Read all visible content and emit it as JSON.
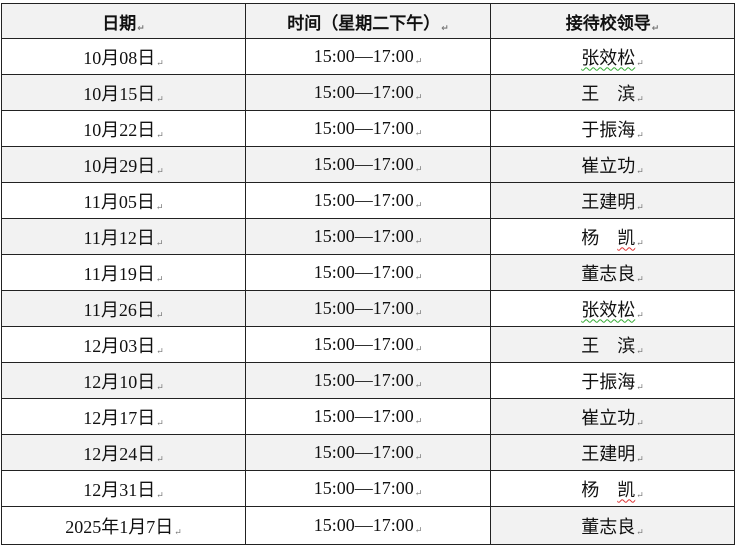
{
  "table": {
    "headers": [
      "日期",
      "时间（星期二下午）",
      "接待校领导"
    ],
    "rows": [
      {
        "date": "10月08日",
        "time": "15:00—17:00",
        "leader": "张效松",
        "shade": [
          false,
          false,
          false
        ],
        "spell": "green"
      },
      {
        "date": "10月15日",
        "time": "15:00—17:00",
        "leader": "王　滨",
        "shade": [
          true,
          true,
          true
        ]
      },
      {
        "date": "10月22日",
        "time": "15:00—17:00",
        "leader": "于振海",
        "shade": [
          false,
          false,
          false
        ]
      },
      {
        "date": "10月29日",
        "time": "15:00—17:00",
        "leader": "崔立功",
        "shade": [
          true,
          true,
          true
        ]
      },
      {
        "date": "11月05日",
        "time": "15:00—17:00",
        "leader": "王建明",
        "shade": [
          false,
          false,
          true
        ]
      },
      {
        "date": "11月12日",
        "time": "15:00—17:00",
        "leader": "杨　凯",
        "shade": [
          true,
          true,
          false
        ],
        "spell": "red"
      },
      {
        "date": "11月19日",
        "time": "15:00—17:00",
        "leader": "董志良",
        "shade": [
          false,
          false,
          true
        ]
      },
      {
        "date": "11月26日",
        "time": "15:00—17:00",
        "leader": "张效松",
        "shade": [
          true,
          true,
          false
        ],
        "spell": "green"
      },
      {
        "date": "12月03日",
        "time": "15:00—17:00",
        "leader": "王　滨",
        "shade": [
          false,
          false,
          true
        ]
      },
      {
        "date": "12月10日",
        "time": "15:00—17:00",
        "leader": "于振海",
        "shade": [
          true,
          true,
          false
        ]
      },
      {
        "date": "12月17日",
        "time": "15:00—17:00",
        "leader": "崔立功",
        "shade": [
          false,
          false,
          true
        ]
      },
      {
        "date": "12月24日",
        "time": "15:00—17:00",
        "leader": "王建明",
        "shade": [
          true,
          true,
          true
        ]
      },
      {
        "date": "12月31日",
        "time": "15:00—17:00",
        "leader": "杨　凯",
        "shade": [
          false,
          false,
          false
        ],
        "spell": "red"
      },
      {
        "date": "2025年1月7日",
        "time": "15:00—17:00",
        "leader": "董志良",
        "shade": [
          false,
          false,
          true
        ]
      }
    ]
  },
  "paragraph_mark": "↵",
  "colors": {
    "shade": "#f2f2f2",
    "border": "#222222"
  }
}
